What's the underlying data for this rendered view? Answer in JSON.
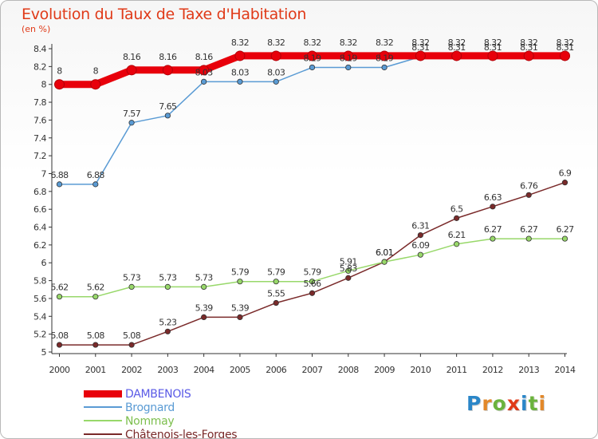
{
  "header": {
    "title": "Evolution du Taux de Taxe d'Habitation",
    "subtitle": "(en %)"
  },
  "logo": {
    "letters": [
      "P",
      "r",
      "o",
      "x",
      "i",
      "t",
      "i"
    ],
    "colors": [
      "#2a86c8",
      "#e2882a",
      "#6bb33d",
      "#e03a18",
      "#2a86c8",
      "#6bb33d",
      "#e2882a"
    ]
  },
  "chart_data": {
    "type": "line",
    "title": "Evolution du Taux de Taxe d'Habitation",
    "subtitle": "(en %)",
    "xlabel": "",
    "ylabel": "",
    "ylim": [
      5,
      8.4
    ],
    "ystep": 0.2,
    "grid": false,
    "legend": "bottom-left",
    "x": [
      2000,
      2001,
      2002,
      2003,
      2004,
      2005,
      2006,
      2007,
      2008,
      2009,
      2010,
      2011,
      2012,
      2013,
      2014
    ],
    "series": [
      {
        "name": "DAMBENOIS",
        "color": "#e8000b",
        "legend_color": "#5a5ae6",
        "values": [
          8,
          8,
          8.16,
          8.16,
          8.16,
          8.32,
          8.32,
          8.32,
          8.32,
          8.32,
          8.32,
          8.32,
          8.32,
          8.32,
          8.32
        ],
        "labels": [
          "8",
          "8",
          "8.16",
          "8.16",
          "8.16",
          "8.32",
          "8.32",
          "8.32",
          "8.32",
          "8.32",
          "8.32",
          "8.32",
          "8.32",
          "8.32",
          "8.32"
        ]
      },
      {
        "name": "Brognard",
        "color": "#5a9bd4",
        "legend_color": "#5a9bd4",
        "values": [
          6.88,
          6.88,
          7.57,
          7.65,
          8.03,
          8.03,
          8.03,
          8.19,
          8.19,
          8.19,
          8.31,
          8.31,
          8.31,
          8.31,
          8.31
        ],
        "labels": [
          "6.88",
          "6.88",
          "7.57",
          "7.65",
          "8.03",
          "8.03",
          "8.03",
          "8.19",
          "8.19",
          "8.19",
          "8.31",
          "8.31",
          "8.31",
          "8.31",
          "8.31"
        ]
      },
      {
        "name": "Nommay",
        "color": "#98d86a",
        "legend_color": "#7dbf4e",
        "values": [
          5.62,
          5.62,
          5.73,
          5.73,
          5.73,
          5.79,
          5.79,
          5.79,
          5.91,
          6.01,
          6.09,
          6.21,
          6.27,
          6.27,
          6.27
        ],
        "labels": [
          "5.62",
          "5.62",
          "5.73",
          "5.73",
          "5.73",
          "5.79",
          "5.79",
          "5.79",
          "5.91",
          "6.01",
          "6.09",
          "6.21",
          "6.27",
          "6.27",
          "6.27"
        ]
      },
      {
        "name": "Châtenois-les-Forges",
        "color": "#7a2a2a",
        "legend_color": "#7a2a2a",
        "values": [
          5.08,
          5.08,
          5.08,
          5.23,
          5.39,
          5.39,
          5.55,
          5.66,
          5.83,
          6.01,
          6.31,
          6.5,
          6.63,
          6.76,
          6.9
        ],
        "labels": [
          "5.08",
          "5.08",
          "5.08",
          "5.23",
          "5.39",
          "5.39",
          "5.55",
          "5.66",
          "5.83",
          "6.01",
          "6.31",
          "6.5",
          "6.63",
          "6.76",
          "6.9"
        ]
      }
    ]
  }
}
